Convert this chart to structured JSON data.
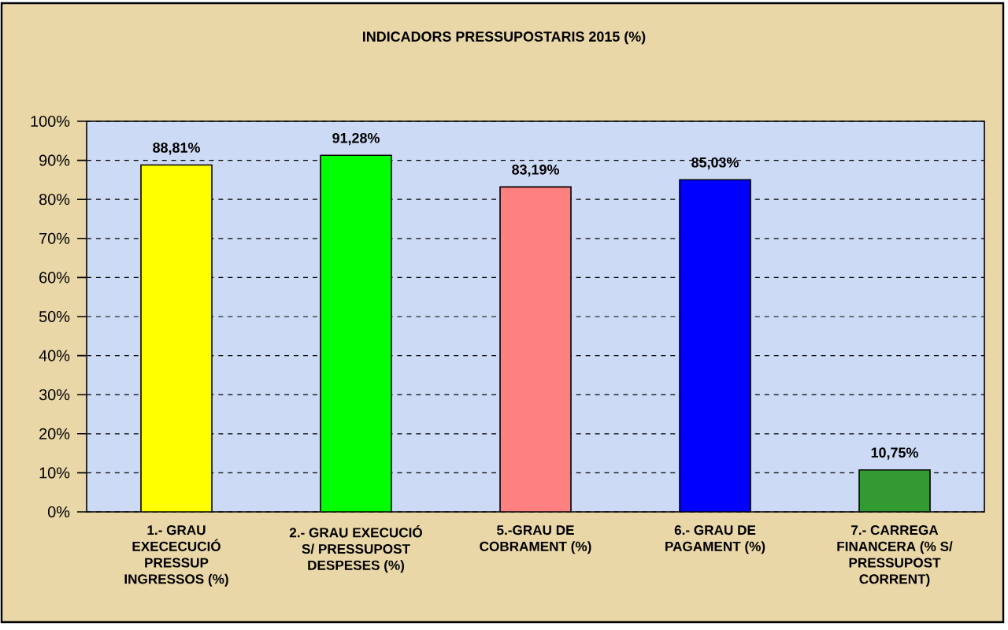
{
  "chart_data": {
    "type": "bar",
    "title": "INDICADORS PRESSUPOSTARIS 2015 (%)",
    "categories": [
      "1.- GRAU EXECECUCIÓ PRESSUP INGRESSOS (%)",
      "2.- GRAU EXECUCIÓ S/ PRESSUPOST DESPESES (%)",
      "5.-GRAU DE COBRAMENT (%)",
      "6.- GRAU DE PAGAMENT (%)",
      "7.- CARREGA FINANCERA (% S/ PRESSUPOST CORRENT)"
    ],
    "values": [
      88.81,
      91.28,
      83.19,
      85.03,
      10.75
    ],
    "colors": [
      "#ffff00",
      "#00ff00",
      "#ff8080",
      "#0000ff",
      "#339933"
    ],
    "value_labels": [
      "88,81%",
      "91,28%",
      "83,19%",
      "85,03%",
      "10,75%"
    ],
    "ylim": [
      0,
      100
    ],
    "yticks": [
      {
        "value": 0,
        "label": "0%"
      },
      {
        "value": 10,
        "label": "10%"
      },
      {
        "value": 20,
        "label": "20%"
      },
      {
        "value": 30,
        "label": "30%"
      },
      {
        "value": 40,
        "label": "40%"
      },
      {
        "value": 50,
        "label": "50%"
      },
      {
        "value": 60,
        "label": "60%"
      },
      {
        "value": 70,
        "label": "70%"
      },
      {
        "value": 80,
        "label": "80%"
      },
      {
        "value": 90,
        "label": "90%"
      },
      {
        "value": 100,
        "label": "100%"
      }
    ],
    "grid": "y"
  }
}
